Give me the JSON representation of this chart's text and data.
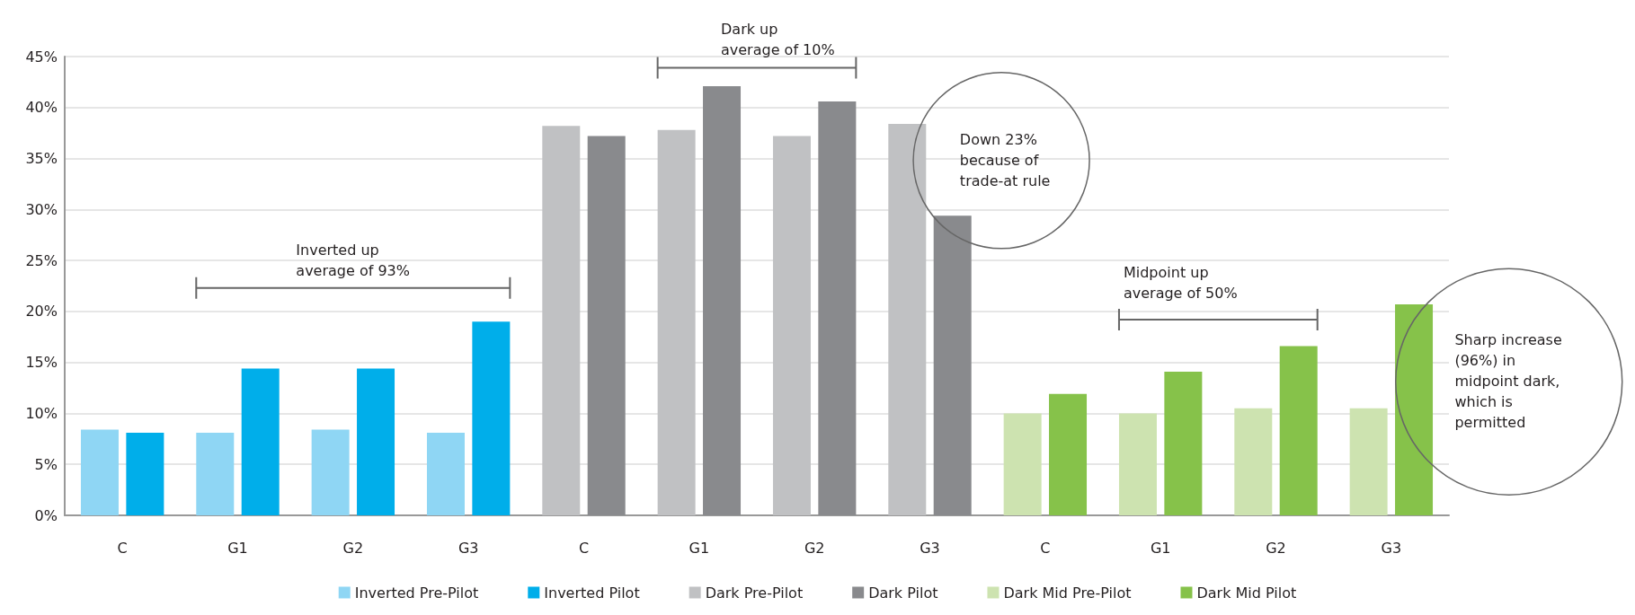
{
  "chart_data": {
    "type": "bar",
    "categories": [
      "C",
      "G1",
      "G2",
      "G3",
      "C",
      "G1",
      "G2",
      "G3",
      "C",
      "G1",
      "G2",
      "G3"
    ],
    "series": [
      {
        "name": "Inverted Pre-Pilot",
        "color": "#8fd6f4",
        "values": [
          8.4,
          8.1,
          8.4,
          8.1,
          null,
          null,
          null,
          null,
          null,
          null,
          null,
          null
        ]
      },
      {
        "name": "Inverted Pilot",
        "color": "#00aeea",
        "values": [
          8.1,
          14.4,
          14.4,
          19.0,
          null,
          null,
          null,
          null,
          null,
          null,
          null,
          null
        ]
      },
      {
        "name": "Dark Pre-Pilot",
        "color": "#c0c1c3",
        "values": [
          null,
          null,
          null,
          null,
          38.2,
          37.8,
          37.2,
          38.4,
          null,
          null,
          null,
          null
        ]
      },
      {
        "name": "Dark Pilot",
        "color": "#898a8d",
        "values": [
          null,
          null,
          null,
          null,
          37.2,
          42.1,
          40.6,
          29.4,
          null,
          null,
          null,
          null
        ]
      },
      {
        "name": "Dark Mid Pre-Pilot",
        "color": "#cde3b0",
        "values": [
          null,
          null,
          null,
          null,
          null,
          null,
          null,
          null,
          10.0,
          10.0,
          10.5,
          10.5
        ]
      },
      {
        "name": "Dark Mid Pilot",
        "color": "#86c24a",
        "values": [
          null,
          null,
          null,
          null,
          null,
          null,
          null,
          null,
          11.9,
          14.1,
          16.6,
          20.7
        ]
      }
    ],
    "ylim": [
      0,
      45
    ],
    "yticks": [
      {
        "value": 0,
        "label": "0%"
      },
      {
        "value": 5,
        "label": "5%"
      },
      {
        "value": 10,
        "label": "10%"
      },
      {
        "value": 15,
        "label": "15%"
      },
      {
        "value": 20,
        "label": "20%"
      },
      {
        "value": 25,
        "label": "25%"
      },
      {
        "value": 30,
        "label": "30%"
      },
      {
        "value": 35,
        "label": "35%"
      },
      {
        "value": 40,
        "label": "40%"
      },
      {
        "value": 45,
        "label": "45%"
      }
    ],
    "grid": "y",
    "legend": "bottom",
    "annotations": [
      "Inverted up\naverage of 93%",
      "Dark up\naverage of 10%",
      "Down 23%\nbecause of\ntrade-at rule",
      "Midpoint up\naverage of 50%",
      "Sharp increase\n(96%) in\nmidpoint dark,\nwhich is\npermitted"
    ]
  }
}
